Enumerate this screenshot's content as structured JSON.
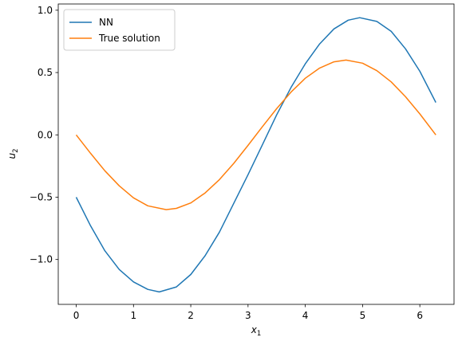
{
  "chart_data": {
    "type": "line",
    "title": "",
    "xlabel": "x",
    "xlabel_sub": "1",
    "ylabel": "u",
    "ylabel_sub": "2",
    "xlim": [
      -0.314,
      6.597
    ],
    "ylim": [
      -1.36,
      1.05
    ],
    "xticks": [
      0,
      1,
      2,
      3,
      4,
      5,
      6
    ],
    "xtick_labels": [
      "0",
      "1",
      "2",
      "3",
      "4",
      "5",
      "6"
    ],
    "yticks": [
      -1.0,
      -0.5,
      0.0,
      0.5,
      1.0
    ],
    "ytick_labels": [
      "−1.0",
      "−0.5",
      "0.0",
      "0.5",
      "1.0"
    ],
    "grid": false,
    "legend_position": "top-left",
    "series": [
      {
        "name": "NN",
        "color": "#1f77b4",
        "x": [
          0,
          0.25,
          0.5,
          0.75,
          1.0,
          1.25,
          1.45,
          1.75,
          2.0,
          2.25,
          2.5,
          2.75,
          3.0,
          3.25,
          3.5,
          3.75,
          4.0,
          4.25,
          4.5,
          4.75,
          4.95,
          5.25,
          5.5,
          5.75,
          6.0,
          6.28
        ],
        "y": [
          -0.5,
          -0.73,
          -0.93,
          -1.08,
          -1.18,
          -1.24,
          -1.26,
          -1.22,
          -1.12,
          -0.97,
          -0.78,
          -0.55,
          -0.32,
          -0.08,
          0.16,
          0.38,
          0.57,
          0.73,
          0.85,
          0.92,
          0.94,
          0.91,
          0.83,
          0.69,
          0.51,
          0.26
        ]
      },
      {
        "name": "True solution",
        "color": "#ff7f0e",
        "x": [
          0,
          0.25,
          0.5,
          0.75,
          1.0,
          1.25,
          1.5708,
          1.75,
          2.0,
          2.25,
          2.5,
          2.75,
          3.0,
          3.25,
          3.5,
          3.75,
          4.0,
          4.25,
          4.5,
          4.7124,
          5.0,
          5.25,
          5.5,
          5.75,
          6.0,
          6.28
        ],
        "y": [
          0.0,
          -0.148,
          -0.288,
          -0.409,
          -0.505,
          -0.569,
          -0.6,
          -0.59,
          -0.546,
          -0.466,
          -0.359,
          -0.229,
          -0.085,
          0.065,
          0.21,
          0.343,
          0.454,
          0.536,
          0.586,
          0.6,
          0.575,
          0.515,
          0.425,
          0.306,
          0.168,
          0.0
        ]
      }
    ]
  }
}
